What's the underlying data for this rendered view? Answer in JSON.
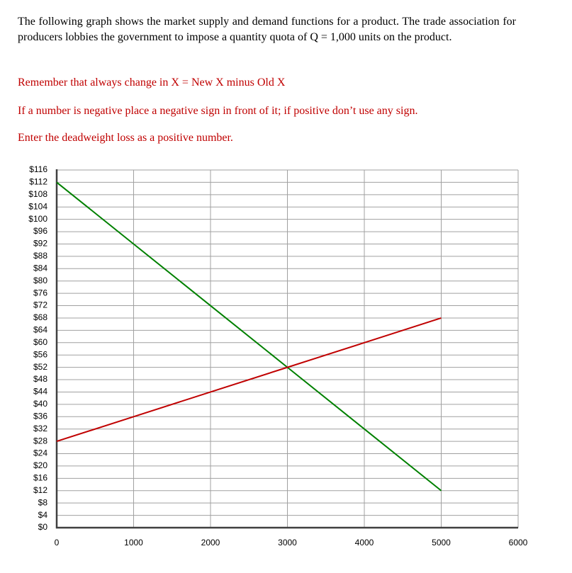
{
  "intro": "The following graph shows the market supply and demand functions for a product. The trade association for producers lobbies the government to impose a quantity quota of Q = 1,000 units on the product.",
  "notes": [
    "Remember that always change in X = New X minus Old X",
    "If a number is negative place a negative sign in front of it; if positive don’t use any sign.",
    "Enter the deadweight loss as a positive number."
  ],
  "chart_data": {
    "type": "line",
    "x": [
      0,
      1000,
      2000,
      3000,
      4000,
      5000
    ],
    "series": [
      {
        "color": "#008000",
        "values": [
          112,
          92,
          72,
          52,
          32,
          12
        ]
      },
      {
        "color": "#c00000",
        "values": [
          28,
          36,
          44,
          52,
          60,
          68
        ]
      }
    ],
    "xlim": [
      0,
      6000
    ],
    "xticks": [
      0,
      1000,
      2000,
      3000,
      4000,
      5000,
      6000
    ],
    "ylim": [
      0,
      116
    ],
    "yticks": [
      {
        "value": 0,
        "label": "$0"
      },
      {
        "value": 4,
        "label": "$4"
      },
      {
        "value": 8,
        "label": "$8"
      },
      {
        "value": 12,
        "label": "$12"
      },
      {
        "value": 16,
        "label": "$16"
      },
      {
        "value": 20,
        "label": "$20"
      },
      {
        "value": 24,
        "label": "$24"
      },
      {
        "value": 28,
        "label": "$28"
      },
      {
        "value": 32,
        "label": "$32"
      },
      {
        "value": 36,
        "label": "$36"
      },
      {
        "value": 40,
        "label": "$40"
      },
      {
        "value": 44,
        "label": "$44"
      },
      {
        "value": 48,
        "label": "$48"
      },
      {
        "value": 52,
        "label": "$52"
      },
      {
        "value": 56,
        "label": "$56"
      },
      {
        "value": 60,
        "label": "$60"
      },
      {
        "value": 64,
        "label": "$64"
      },
      {
        "value": 68,
        "label": "$68"
      },
      {
        "value": 72,
        "label": "$72"
      },
      {
        "value": 76,
        "label": "$76"
      },
      {
        "value": 80,
        "label": "$80"
      },
      {
        "value": 84,
        "label": "$84"
      },
      {
        "value": 88,
        "label": "$88"
      },
      {
        "value": 92,
        "label": "$92"
      },
      {
        "value": 96,
        "label": "$96"
      },
      {
        "value": 100,
        "label": "$100"
      },
      {
        "value": 104,
        "label": "$104"
      },
      {
        "value": 108,
        "label": "$108"
      },
      {
        "value": 112,
        "label": "$112"
      },
      {
        "value": 116,
        "label": "$116"
      }
    ],
    "grid": true
  }
}
